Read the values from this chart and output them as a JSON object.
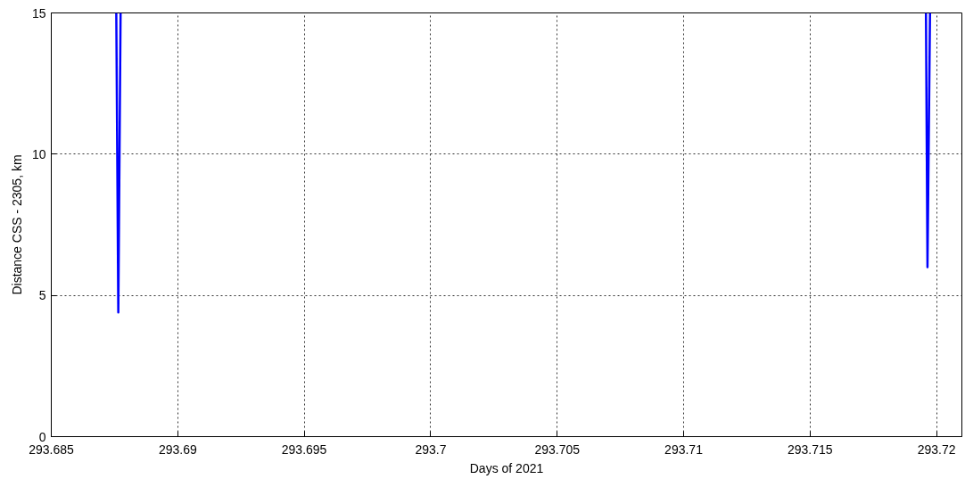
{
  "chart_data": {
    "type": "line",
    "xlabel": "Days of 2021",
    "ylabel": "Distance CSS - 2305, km",
    "xlim": [
      293.685,
      293.721
    ],
    "ylim": [
      0,
      15
    ],
    "xticks": [
      293.685,
      293.69,
      293.695,
      293.7,
      293.705,
      293.71,
      293.715,
      293.72
    ],
    "yticks": [
      0,
      5,
      10,
      15
    ],
    "grid": true,
    "series": [
      {
        "color": "#0000ff",
        "x": [
          293.68757,
          293.68765,
          293.68774
        ],
        "values": [
          15,
          4.4,
          15
        ]
      },
      {
        "color": "#0000ff",
        "x": [
          293.71958,
          293.71964,
          293.71974
        ],
        "values": [
          15,
          6.0,
          15
        ]
      }
    ]
  }
}
